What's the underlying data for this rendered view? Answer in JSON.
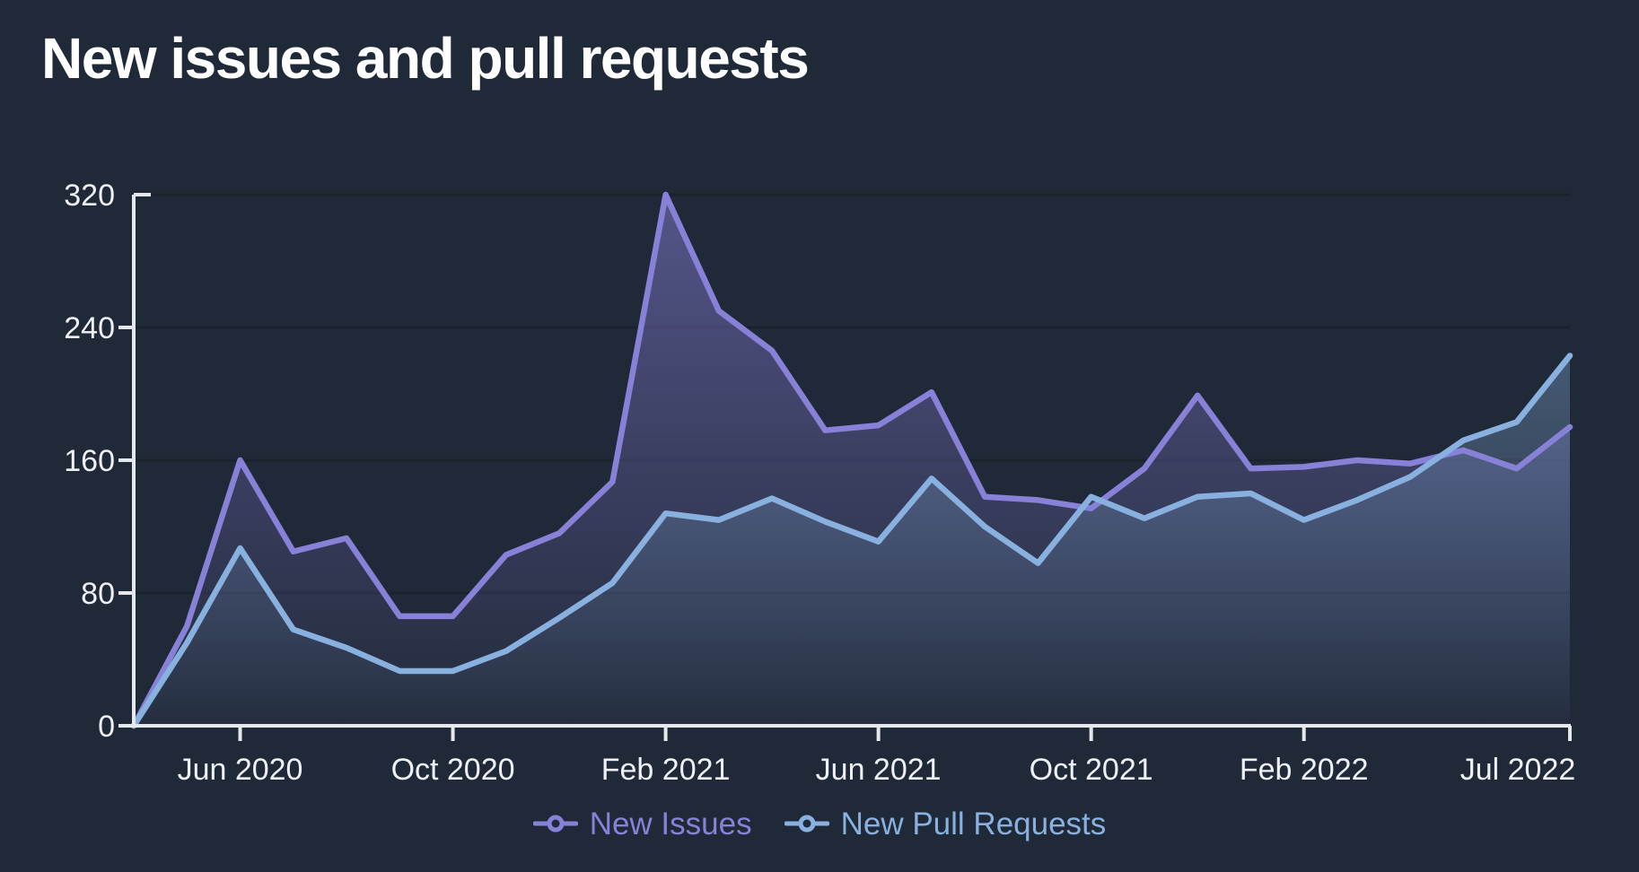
{
  "page": {
    "background": "#202938"
  },
  "chart_data": {
    "type": "area",
    "title": "New issues and pull requests",
    "x": [
      "Apr 2020",
      "May 2020",
      "Jun 2020",
      "Jul 2020",
      "Aug 2020",
      "Sep 2020",
      "Oct 2020",
      "Nov 2020",
      "Dec 2020",
      "Jan 2021",
      "Feb 2021",
      "Mar 2021",
      "Apr 2021",
      "May 2021",
      "Jun 2021",
      "Jul 2021",
      "Aug 2021",
      "Sep 2021",
      "Oct 2021",
      "Nov 2021",
      "Dec 2021",
      "Jan 2022",
      "Feb 2022",
      "Mar 2022",
      "Apr 2022",
      "May 2022",
      "Jun 2022",
      "Jul 2022"
    ],
    "series": [
      {
        "name": "New Issues",
        "color": "#8781D8",
        "values": [
          0,
          60,
          160,
          105,
          113,
          66,
          66,
          103,
          116,
          147,
          320,
          250,
          226,
          178,
          181,
          201,
          138,
          136,
          131,
          155,
          199,
          155,
          156,
          160,
          158,
          166,
          155,
          180
        ]
      },
      {
        "name": "New Pull Requests",
        "color": "#89B1DF",
        "values": [
          0,
          50,
          107,
          58,
          47,
          33,
          33,
          45,
          65,
          86,
          128,
          124,
          137,
          123,
          111,
          149,
          120,
          98,
          138,
          125,
          138,
          140,
          124,
          136,
          150,
          172,
          183,
          223
        ]
      }
    ],
    "ylim": [
      0,
      320
    ],
    "yticks": [
      0,
      80,
      160,
      240,
      320
    ],
    "xticks": [
      {
        "index": 2,
        "label": "Jun 2020"
      },
      {
        "index": 6,
        "label": "Oct 2020"
      },
      {
        "index": 10,
        "label": "Feb 2021"
      },
      {
        "index": 14,
        "label": "Jun 2021"
      },
      {
        "index": 18,
        "label": "Oct 2021"
      },
      {
        "index": 22,
        "label": "Feb 2022"
      },
      {
        "index": 27,
        "label": "Jul 2022"
      }
    ],
    "grid": "horizontal",
    "legend_position": "bottom",
    "axis_color": "#E5E8EC",
    "grid_color": "#1A222E",
    "label_color": "#EDF0F4"
  }
}
